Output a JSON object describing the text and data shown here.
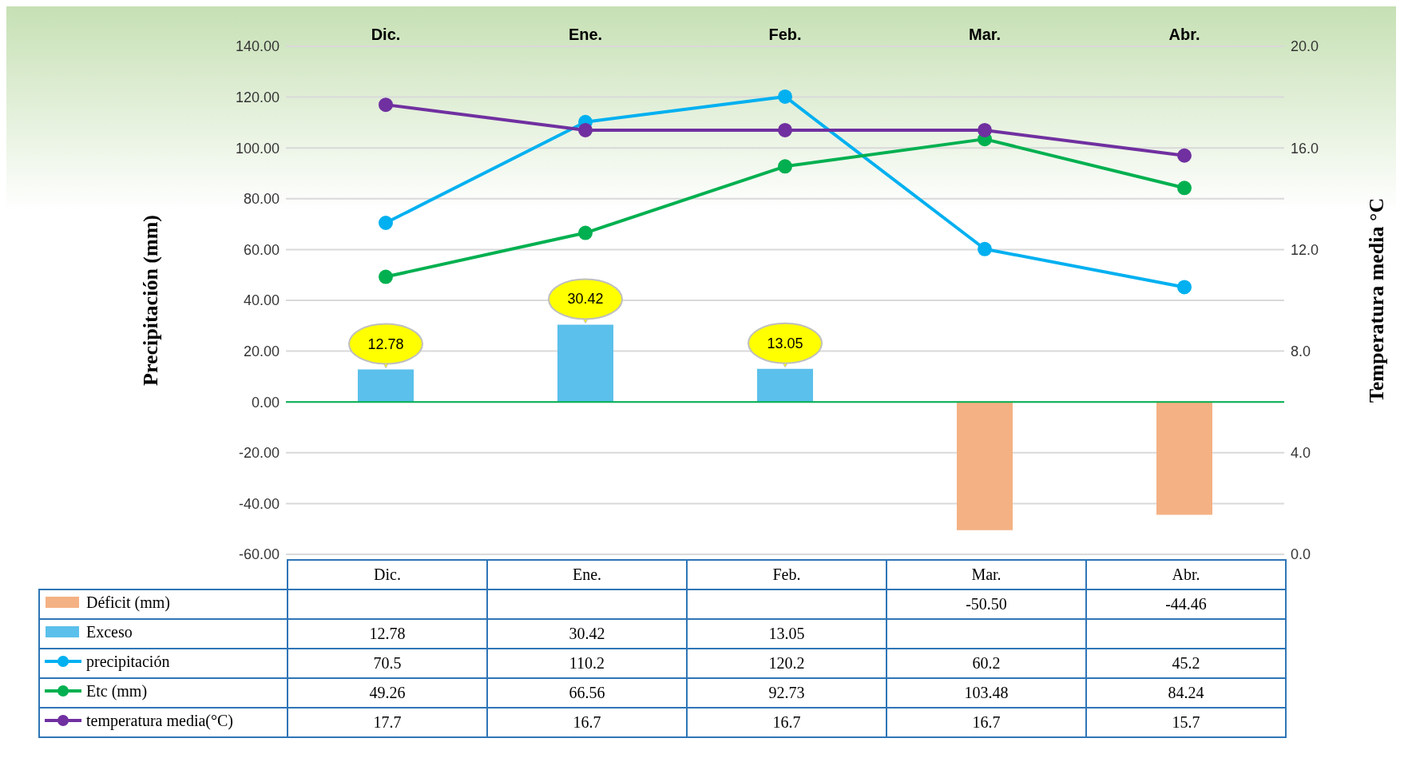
{
  "chart_data": {
    "type": "line",
    "categories": [
      "Dic.",
      "Ene.",
      "Feb.",
      "Mar.",
      "Abr."
    ],
    "ylabel": "Precipitación (mm)",
    "y2label": "Temperatura media °C",
    "ylim": [
      -60,
      140
    ],
    "yticks": [
      {
        "value": -60,
        "label": "-60.00"
      },
      {
        "value": -40,
        "label": "-40.00"
      },
      {
        "value": -20,
        "label": "-20.00"
      },
      {
        "value": 0,
        "label": "0.00"
      },
      {
        "value": 20,
        "label": "20.00"
      },
      {
        "value": 40,
        "label": "40.00"
      },
      {
        "value": 60,
        "label": "60.00"
      },
      {
        "value": 80,
        "label": "80.00"
      },
      {
        "value": 100,
        "label": "100.00"
      },
      {
        "value": 120,
        "label": "120.00"
      },
      {
        "value": 140,
        "label": "140.00"
      }
    ],
    "y2lim": [
      0,
      20
    ],
    "y2ticks": [
      {
        "value": 0,
        "label": "0.0"
      },
      {
        "value": 4,
        "label": "4.0"
      },
      {
        "value": 8,
        "label": "8.0"
      },
      {
        "value": 12,
        "label": "12.0"
      },
      {
        "value": 16,
        "label": "16.0"
      },
      {
        "value": 20,
        "label": "20.0"
      }
    ],
    "stacked": true,
    "grid": "y",
    "legend": "bottom",
    "marker": "circle",
    "data_labels": true,
    "ref_lines": [
      {
        "axis": "y",
        "value": 0,
        "color": "#00b050"
      }
    ],
    "series": [
      {
        "name": "Déficit (mm)",
        "type": "bar",
        "color": "#f4b183",
        "values": [
          null,
          null,
          null,
          -50.5,
          -44.46
        ],
        "value_labels": [
          null,
          null,
          null,
          "-50.50",
          "-44.46"
        ]
      },
      {
        "name": "Exceso",
        "type": "bar",
        "color": "#5bc0eb",
        "values": [
          12.78,
          30.42,
          13.05,
          null,
          null
        ],
        "value_labels": [
          "12.78",
          "30.42",
          "13.05",
          null,
          null
        ]
      },
      {
        "name": "precipitación",
        "color": "#00b0f0",
        "values": [
          70.5,
          110.2,
          120.2,
          60.2,
          45.2
        ]
      },
      {
        "name": "Etc (mm)",
        "color": "#00b050",
        "values": [
          49.26,
          66.56,
          92.73,
          103.48,
          84.24
        ]
      },
      {
        "name": "temperatura media(°C)",
        "color": "#7030a0",
        "axis": "y2",
        "values": [
          17.7,
          16.7,
          16.7,
          16.7,
          15.7
        ]
      }
    ]
  }
}
